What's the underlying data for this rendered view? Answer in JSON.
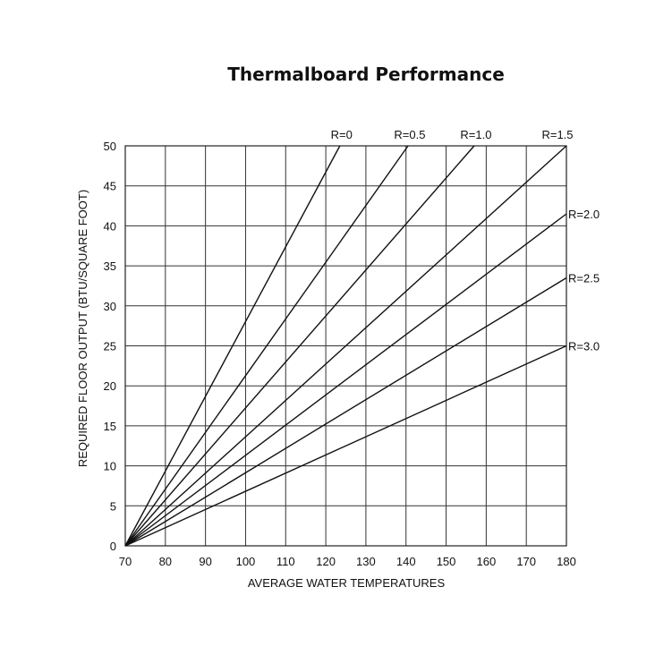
{
  "chart_data": {
    "type": "line",
    "title": "Thermalboard Performance",
    "xlabel": "AVERAGE WATER TEMPERATURES",
    "ylabel": "REQUIRED FLOOR OUTPUT (BTU/SQUARE FOOT)",
    "xlim": [
      70,
      180
    ],
    "ylim": [
      0,
      50
    ],
    "xticks": [
      70,
      80,
      90,
      100,
      110,
      120,
      130,
      140,
      150,
      160,
      170,
      180
    ],
    "yticks": [
      0,
      5,
      10,
      15,
      20,
      25,
      30,
      35,
      40,
      45,
      50
    ],
    "grid": true,
    "legend": "series labels at line ends",
    "series": [
      {
        "name": "R=0",
        "x": [
          70,
          123.5
        ],
        "y": [
          0,
          50
        ]
      },
      {
        "name": "R=0.5",
        "x": [
          70,
          140.5
        ],
        "y": [
          0,
          50
        ]
      },
      {
        "name": "R=1.0",
        "x": [
          70,
          157
        ],
        "y": [
          0,
          50
        ]
      },
      {
        "name": "R=1.5",
        "x": [
          70,
          180
        ],
        "y": [
          0,
          50
        ]
      },
      {
        "name": "R=2.0",
        "x": [
          70,
          180
        ],
        "y": [
          0,
          41.5
        ]
      },
      {
        "name": "R=2.5",
        "x": [
          70,
          180
        ],
        "y": [
          0,
          33.5
        ]
      },
      {
        "name": "R=3.0",
        "x": [
          70,
          180
        ],
        "y": [
          0,
          25
        ]
      }
    ]
  }
}
